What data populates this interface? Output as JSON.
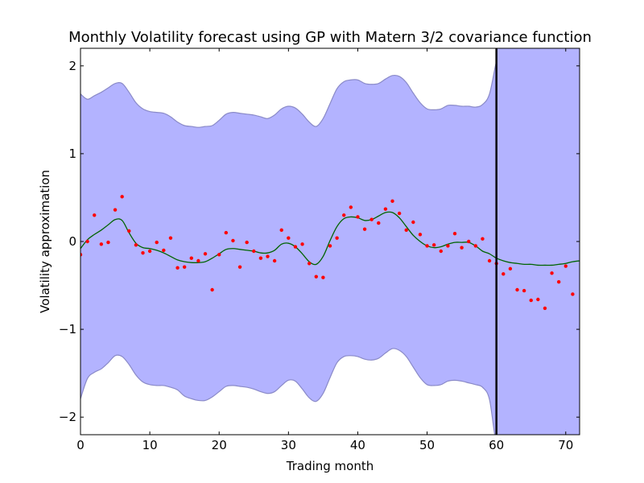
{
  "chart_data": {
    "type": "line",
    "title": "Monthly Volatility forecast using GP with Matern 3/2 covariance function",
    "xlabel": "Trading month",
    "ylabel": "Volatility approximation",
    "xlim": [
      0,
      72
    ],
    "ylim": [
      -2.2,
      2.2
    ],
    "xticks": [
      0,
      10,
      20,
      30,
      40,
      50,
      60,
      70
    ],
    "yticks": [
      -2,
      -1,
      0,
      1,
      2
    ],
    "xtick_labels": [
      "0",
      "10",
      "20",
      "30",
      "40",
      "50",
      "60",
      "70"
    ],
    "ytick_labels": [
      "−2",
      "−1",
      "0",
      "1",
      "2"
    ],
    "grid": false,
    "forecast_start": 60,
    "colors": {
      "band_fill": "#b3b3ff",
      "band_edge": "#8a8ac8",
      "mean_line": "#006400",
      "points": "#ff0000",
      "divider": "#000000"
    },
    "series": [
      {
        "kind": "band",
        "x": [
          0,
          1,
          2,
          3,
          4,
          5,
          6,
          7,
          8,
          9,
          10,
          11,
          12,
          13,
          14,
          15,
          16,
          17,
          18,
          19,
          20,
          21,
          22,
          23,
          24,
          25,
          26,
          27,
          28,
          29,
          30,
          31,
          32,
          33,
          34,
          35,
          36,
          37,
          38,
          39,
          40,
          41,
          42,
          43,
          44,
          45,
          46,
          47,
          48,
          49,
          50,
          51,
          52,
          53,
          54,
          55,
          56,
          57,
          58,
          59,
          60,
          61,
          62,
          63,
          64,
          65,
          66,
          67,
          68,
          69,
          70,
          71,
          72
        ],
        "upper": [
          1.68,
          1.62,
          1.66,
          1.7,
          1.75,
          1.8,
          1.8,
          1.7,
          1.58,
          1.51,
          1.48,
          1.47,
          1.46,
          1.42,
          1.36,
          1.32,
          1.31,
          1.3,
          1.31,
          1.32,
          1.38,
          1.45,
          1.47,
          1.46,
          1.45,
          1.44,
          1.42,
          1.4,
          1.44,
          1.51,
          1.54,
          1.52,
          1.45,
          1.36,
          1.31,
          1.4,
          1.57,
          1.74,
          1.82,
          1.84,
          1.84,
          1.8,
          1.79,
          1.8,
          1.85,
          1.89,
          1.88,
          1.81,
          1.69,
          1.58,
          1.51,
          1.5,
          1.51,
          1.55,
          1.55,
          1.54,
          1.54,
          1.53,
          1.56,
          1.68,
          2.05,
          2.3,
          2.3,
          2.3,
          2.3,
          2.3,
          2.3,
          2.3,
          2.3,
          2.3,
          2.3,
          2.3,
          2.3
        ],
        "lower": [
          -1.79,
          -1.56,
          -1.49,
          -1.45,
          -1.38,
          -1.3,
          -1.31,
          -1.4,
          -1.52,
          -1.6,
          -1.63,
          -1.64,
          -1.64,
          -1.66,
          -1.69,
          -1.76,
          -1.79,
          -1.81,
          -1.81,
          -1.77,
          -1.71,
          -1.65,
          -1.64,
          -1.65,
          -1.66,
          -1.68,
          -1.71,
          -1.73,
          -1.71,
          -1.64,
          -1.58,
          -1.59,
          -1.68,
          -1.78,
          -1.82,
          -1.73,
          -1.55,
          -1.38,
          -1.31,
          -1.3,
          -1.31,
          -1.34,
          -1.35,
          -1.33,
          -1.27,
          -1.22,
          -1.24,
          -1.31,
          -1.43,
          -1.55,
          -1.63,
          -1.64,
          -1.63,
          -1.59,
          -1.58,
          -1.59,
          -1.61,
          -1.63,
          -1.66,
          -1.8,
          -2.3,
          -2.3,
          -2.3,
          -2.3,
          -2.3,
          -2.3,
          -2.3,
          -2.3,
          -2.3,
          -2.3,
          -2.3,
          -2.3,
          -2.3
        ]
      },
      {
        "kind": "line",
        "x": [
          0,
          1,
          2,
          3,
          4,
          5,
          6,
          7,
          8,
          9,
          10,
          11,
          12,
          13,
          14,
          15,
          16,
          17,
          18,
          19,
          20,
          21,
          22,
          23,
          24,
          25,
          26,
          27,
          28,
          29,
          30,
          31,
          32,
          33,
          34,
          35,
          36,
          37,
          38,
          39,
          40,
          41,
          42,
          43,
          44,
          45,
          46,
          47,
          48,
          49,
          50,
          51,
          52,
          53,
          54,
          55,
          56,
          57,
          58,
          59,
          60,
          61,
          62,
          63,
          64,
          65,
          66,
          67,
          68,
          69,
          70,
          71,
          72
        ],
        "y": [
          -0.08,
          0.02,
          0.08,
          0.13,
          0.19,
          0.25,
          0.24,
          0.1,
          -0.02,
          -0.07,
          -0.08,
          -0.1,
          -0.13,
          -0.17,
          -0.21,
          -0.23,
          -0.24,
          -0.24,
          -0.23,
          -0.19,
          -0.14,
          -0.09,
          -0.08,
          -0.09,
          -0.1,
          -0.11,
          -0.13,
          -0.13,
          -0.1,
          -0.03,
          -0.02,
          -0.06,
          -0.14,
          -0.23,
          -0.26,
          -0.17,
          0.01,
          0.17,
          0.26,
          0.28,
          0.27,
          0.24,
          0.25,
          0.29,
          0.33,
          0.33,
          0.27,
          0.17,
          0.07,
          0.0,
          -0.05,
          -0.07,
          -0.06,
          -0.03,
          -0.01,
          -0.01,
          -0.01,
          -0.05,
          -0.11,
          -0.14,
          -0.19,
          -0.22,
          -0.24,
          -0.25,
          -0.26,
          -0.26,
          -0.27,
          -0.27,
          -0.27,
          -0.26,
          -0.25,
          -0.23,
          -0.22
        ]
      },
      {
        "kind": "scatter",
        "x": [
          0,
          1,
          2,
          3,
          4,
          5,
          6,
          7,
          8,
          9,
          10,
          11,
          12,
          13,
          14,
          15,
          16,
          17,
          18,
          19,
          20,
          21,
          22,
          23,
          24,
          25,
          26,
          27,
          28,
          29,
          30,
          31,
          32,
          33,
          34,
          35,
          36,
          37,
          38,
          39,
          40,
          41,
          42,
          43,
          44,
          45,
          46,
          47,
          48,
          49,
          50,
          51,
          52,
          53,
          54,
          55,
          56,
          57,
          58,
          59,
          60,
          61,
          62,
          63,
          64,
          65,
          66,
          67,
          68,
          69,
          70,
          71
        ],
        "y": [
          -0.15,
          0.0,
          0.3,
          -0.03,
          -0.01,
          0.36,
          0.51,
          0.12,
          -0.04,
          -0.13,
          -0.11,
          -0.01,
          -0.1,
          0.04,
          -0.3,
          -0.29,
          -0.19,
          -0.22,
          -0.14,
          -0.55,
          -0.15,
          0.1,
          0.01,
          -0.29,
          -0.01,
          -0.11,
          -0.19,
          -0.17,
          -0.22,
          0.13,
          0.04,
          -0.06,
          -0.03,
          -0.25,
          -0.4,
          -0.41,
          -0.05,
          0.04,
          0.3,
          0.39,
          0.28,
          0.14,
          0.25,
          0.21,
          0.37,
          0.46,
          0.32,
          0.13,
          0.22,
          0.08,
          -0.05,
          -0.04,
          -0.11,
          -0.05,
          0.09,
          -0.07,
          0.0,
          -0.05,
          0.03,
          -0.22,
          -0.25,
          -0.37,
          -0.31,
          -0.55,
          -0.56,
          -0.67,
          -0.66,
          -0.76,
          -0.36,
          -0.46,
          -0.28,
          -0.6
        ]
      }
    ]
  }
}
